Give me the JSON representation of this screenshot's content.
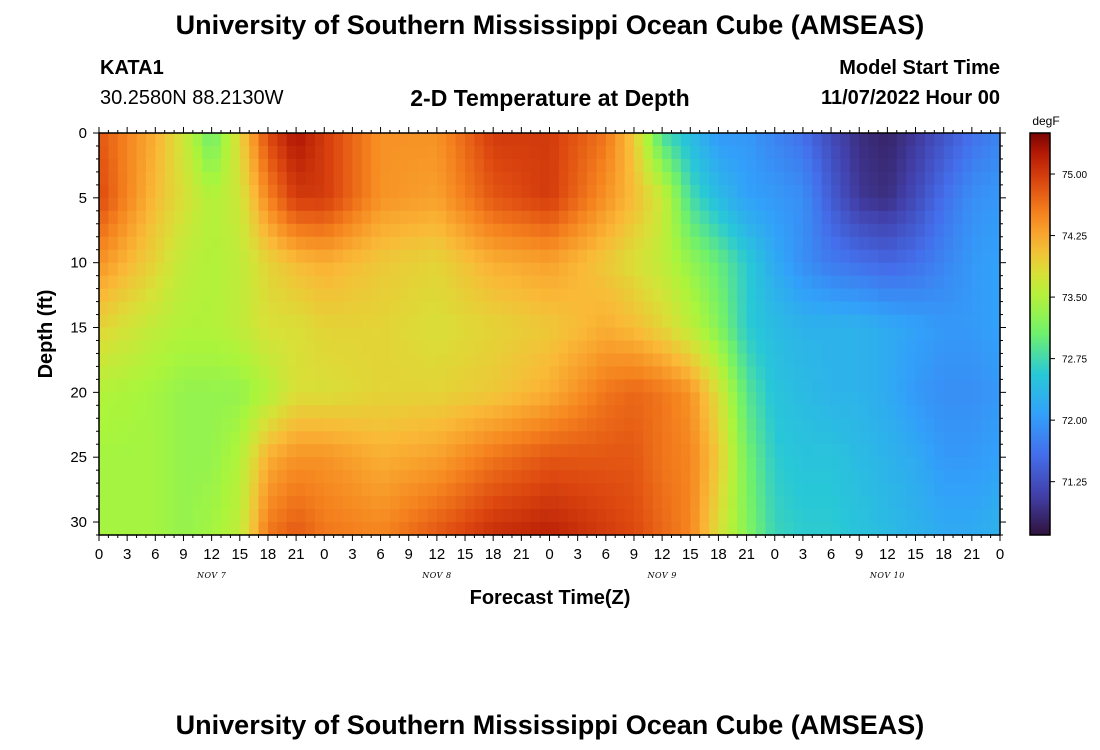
{
  "page": {
    "title": "University of Southern Mississippi Ocean Cube (AMSEAS)",
    "footer_title": "University of Southern Mississippi Ocean Cube (AMSEAS)",
    "station_id": "KATA1",
    "station_coords": "30.2580N  88.2130W",
    "model_start_label": "Model Start Time",
    "model_start_value": "11/07/2022 Hour 00"
  },
  "chart_data": {
    "type": "heatmap",
    "title": "2-D Temperature at Depth",
    "xlabel": "Forecast Time(Z)",
    "ylabel": "Depth (ft)",
    "x_range_hours": [
      0,
      96
    ],
    "y_range": [
      0,
      31
    ],
    "y_inverted": true,
    "x_tick_labels": [
      "0",
      "3",
      "6",
      "9",
      "12",
      "15",
      "18",
      "21",
      "0",
      "3",
      "6",
      "9",
      "12",
      "15",
      "18",
      "21",
      "0",
      "3",
      "6",
      "9",
      "12",
      "15",
      "18",
      "21",
      "0",
      "3",
      "6",
      "9",
      "12",
      "15",
      "18",
      "21",
      "0"
    ],
    "y_ticks": [
      0,
      5,
      10,
      15,
      20,
      25,
      30
    ],
    "date_labels": [
      {
        "label": "NOV 7",
        "hour": 12
      },
      {
        "label": "NOV 8",
        "hour": 36
      },
      {
        "label": "NOV 9",
        "hour": 60
      },
      {
        "label": "NOV 10",
        "hour": 84
      }
    ],
    "colorbar": {
      "unit": "degF",
      "range": [
        70.6,
        75.5
      ],
      "ticks": [
        "75.00",
        "74.25",
        "73.50",
        "72.75",
        "72.00",
        "71.25"
      ]
    },
    "depth_levels_ft": [
      0,
      5,
      10,
      15,
      20,
      25,
      31
    ],
    "hours": [
      0,
      6,
      9,
      12,
      15,
      18,
      21,
      24,
      30,
      36,
      42,
      48,
      54,
      57,
      60,
      63,
      66,
      69,
      72,
      75,
      78,
      81,
      84,
      87,
      90,
      93,
      96
    ],
    "values": [
      [
        74.8,
        74.2,
        73.7,
        73.0,
        73.9,
        74.9,
        75.3,
        75.0,
        74.4,
        74.4,
        75.0,
        75.0,
        74.6,
        74.0,
        72.8,
        72.4,
        72.0,
        72.0,
        71.8,
        71.6,
        71.2,
        70.9,
        70.8,
        71.0,
        71.3,
        71.6,
        71.8
      ],
      [
        74.9,
        74.1,
        73.8,
        73.5,
        73.7,
        74.5,
        75.0,
        75.0,
        74.4,
        74.3,
        74.8,
        75.0,
        74.4,
        74.1,
        73.7,
        72.8,
        72.4,
        72.1,
        72.0,
        71.9,
        71.4,
        71.0,
        70.9,
        71.2,
        71.6,
        71.9,
        72.0
      ],
      [
        74.4,
        73.9,
        73.6,
        73.5,
        73.6,
        73.9,
        74.1,
        74.2,
        74.0,
        73.9,
        74.2,
        74.3,
        74.0,
        73.8,
        73.6,
        73.3,
        73.0,
        72.6,
        72.2,
        71.9,
        71.7,
        71.6,
        71.5,
        71.6,
        71.8,
        72.0,
        72.1
      ],
      [
        73.9,
        73.6,
        73.5,
        73.5,
        73.6,
        73.8,
        73.8,
        73.9,
        73.9,
        73.8,
        73.9,
        74.0,
        74.2,
        74.1,
        73.9,
        73.6,
        73.2,
        72.6,
        72.4,
        72.3,
        72.3,
        72.3,
        72.2,
        72.1,
        72.0,
        72.0,
        72.1
      ],
      [
        73.5,
        73.4,
        73.3,
        73.3,
        73.3,
        73.5,
        73.8,
        73.8,
        73.9,
        73.9,
        74.0,
        74.2,
        74.6,
        74.7,
        74.6,
        74.4,
        73.8,
        72.9,
        72.5,
        72.4,
        72.3,
        72.3,
        72.2,
        72.0,
        71.9,
        71.9,
        72.0
      ],
      [
        73.4,
        73.4,
        73.3,
        73.3,
        73.5,
        74.2,
        74.4,
        74.4,
        74.2,
        74.3,
        74.6,
        74.8,
        74.8,
        74.8,
        74.6,
        74.5,
        74.0,
        73.1,
        72.6,
        72.5,
        72.5,
        72.4,
        72.3,
        72.2,
        72.0,
        72.0,
        72.1
      ],
      [
        73.4,
        73.4,
        73.3,
        73.4,
        73.6,
        74.6,
        74.8,
        74.6,
        74.5,
        74.8,
        75.1,
        75.2,
        75.0,
        74.9,
        74.7,
        74.5,
        73.8,
        73.2,
        72.7,
        72.6,
        72.6,
        72.5,
        72.4,
        72.3,
        72.2,
        72.2,
        72.3
      ]
    ]
  }
}
